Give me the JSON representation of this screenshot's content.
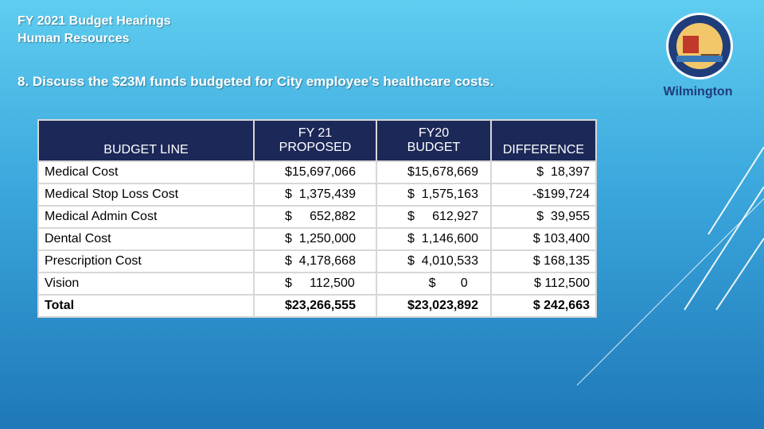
{
  "header": {
    "title_lines": [
      "FY 2021 Budget Hearings",
      "Human Resources"
    ],
    "question": "8. Discuss the $23M funds budgeted for City employee’s healthcare costs.",
    "logo_text": "Wilmington"
  },
  "table": {
    "header": [
      "BUDGET LINE",
      "FY 21\nPROPOSED",
      "FY20\nBUDGET",
      "DIFFERENCE"
    ],
    "rows": [
      [
        "Medical Cost",
        "$15,697,066",
        "$15,678,669",
        "$  18,397"
      ],
      [
        "Medical Stop Loss Cost",
        "$  1,375,439",
        "$  1,575,163",
        "-$199,724"
      ],
      [
        "Medical Admin Cost",
        "$     652,882",
        "$     612,927",
        "$  39,955"
      ],
      [
        "Dental Cost",
        "$  1,250,000",
        "$  1,146,600",
        "$ 103,400"
      ],
      [
        "Prescription Cost",
        "$  4,178,668",
        "$  4,010,533",
        "$ 168,135"
      ],
      [
        "Vision",
        "$     112,500",
        "      $       0",
        "$ 112,500"
      ],
      [
        "Total",
        "$23,266,555",
        "$23,023,892",
        "$ 242,663"
      ]
    ]
  }
}
